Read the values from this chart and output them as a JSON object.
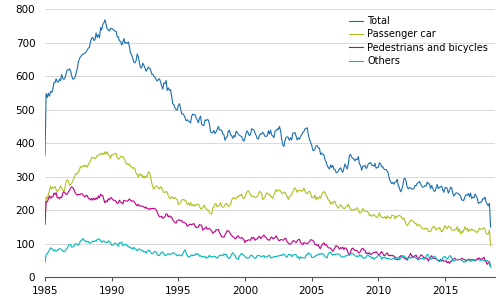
{
  "colors": {
    "Total": "#1a6faf",
    "Passenger car": "#b0c020",
    "Pedestrians and bicycles": "#c0008a",
    "Others": "#00b8b8"
  },
  "legend_labels": [
    "Total",
    "Passenger car",
    "Pedestrians and bicycles",
    "Others"
  ],
  "ylim": [
    0,
    800
  ],
  "yticks": [
    0,
    100,
    200,
    300,
    400,
    500,
    600,
    700,
    800
  ],
  "xlim_start": 1985.0,
  "xlim_end": 2018.75,
  "xticks": [
    1985,
    1990,
    1995,
    2000,
    2005,
    2010,
    2015
  ],
  "background_color": "#ffffff",
  "grid_color": "#cccccc",
  "linewidth": 0.8
}
